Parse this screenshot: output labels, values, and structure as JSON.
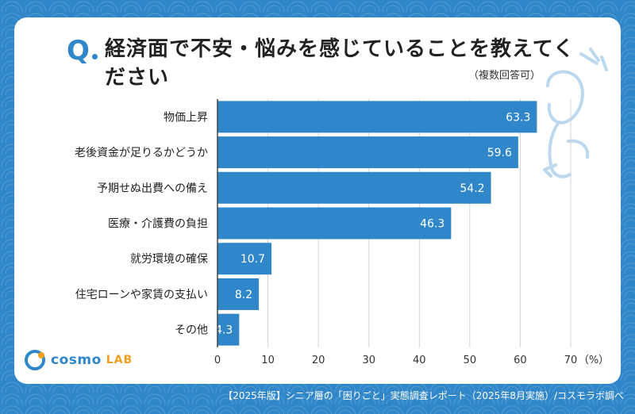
{
  "header": {
    "q_mark": "Q",
    "title": "経済面で不安・悩みを感じていることを教えてください",
    "subtitle": "（複数回答可）"
  },
  "chart_data": {
    "type": "bar",
    "orientation": "horizontal",
    "categories": [
      "物価上昇",
      "老後資金が足りるかどうか",
      "予期せぬ出費への備え",
      "医療・介護費の負担",
      "就労環境の確保",
      "住宅ローンや家賃の支払い",
      "その他"
    ],
    "values": [
      63.3,
      59.6,
      54.2,
      46.3,
      10.7,
      8.2,
      4.3
    ],
    "value_labels": [
      "63.3",
      "59.6",
      "54.2",
      "46.3",
      "10.7",
      "8.2",
      "4.3"
    ],
    "xlim": [
      0,
      70
    ],
    "xticks": [
      "0",
      "10",
      "20",
      "30",
      "40",
      "50",
      "60",
      "70"
    ],
    "xunit": "（%）",
    "grid": true,
    "bar_color": "#2f86c8"
  },
  "logo": {
    "part1": "cosmo",
    "part2": "LAB"
  },
  "footer": "【2025年版】シニア層の「困りごと」実態調査レポート（2025年8月実施）/コスモラボ調べ",
  "colors": {
    "primary": "#2f86c8",
    "accent": "#f0a020"
  }
}
